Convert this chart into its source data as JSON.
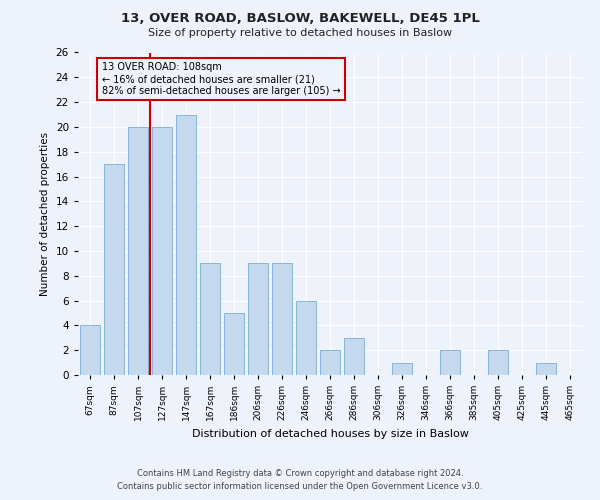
{
  "title": "13, OVER ROAD, BASLOW, BAKEWELL, DE45 1PL",
  "subtitle": "Size of property relative to detached houses in Baslow",
  "xlabel": "Distribution of detached houses by size in Baslow",
  "ylabel": "Number of detached properties",
  "categories": [
    "67sqm",
    "87sqm",
    "107sqm",
    "127sqm",
    "147sqm",
    "167sqm",
    "186sqm",
    "206sqm",
    "226sqm",
    "246sqm",
    "266sqm",
    "286sqm",
    "306sqm",
    "326sqm",
    "346sqm",
    "366sqm",
    "385sqm",
    "405sqm",
    "425sqm",
    "445sqm",
    "465sqm"
  ],
  "values": [
    4,
    17,
    20,
    20,
    21,
    9,
    5,
    9,
    9,
    6,
    2,
    3,
    0,
    1,
    0,
    2,
    0,
    2,
    0,
    1,
    0
  ],
  "bar_color": "#c5d9ee",
  "bar_edge_color": "#7aadd4",
  "ylim": [
    0,
    26
  ],
  "yticks": [
    0,
    2,
    4,
    6,
    8,
    10,
    12,
    14,
    16,
    18,
    20,
    22,
    24,
    26
  ],
  "property_line_color": "#cc0000",
  "annotation_title": "13 OVER ROAD: 108sqm",
  "annotation_line1": "← 16% of detached houses are smaller (21)",
  "annotation_line2": "82% of semi-detached houses are larger (105) →",
  "annotation_box_color": "#cc0000",
  "footnote1": "Contains HM Land Registry data © Crown copyright and database right 2024.",
  "footnote2": "Contains public sector information licensed under the Open Government Licence v3.0.",
  "background_color": "#eef2fb",
  "grid_color": "#ffffff"
}
